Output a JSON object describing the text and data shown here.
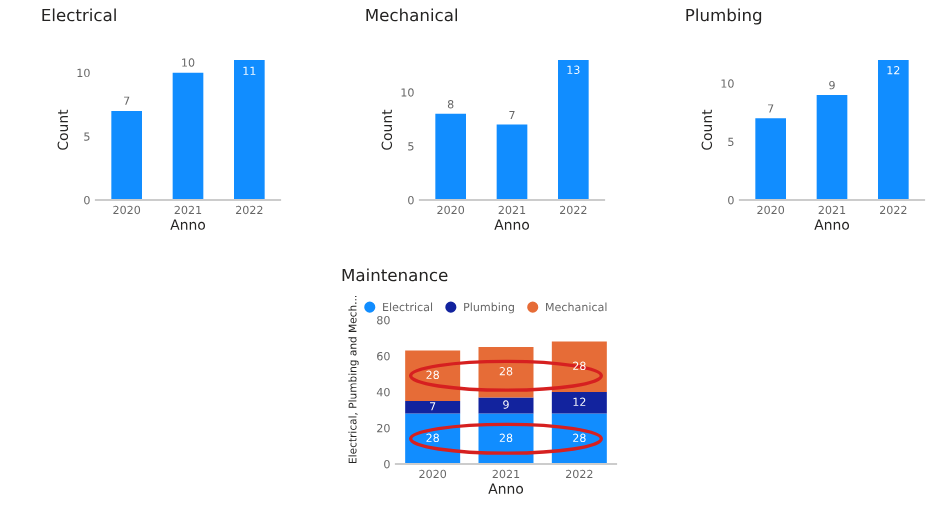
{
  "chart_data": [
    {
      "type": "bar",
      "title": "Electrical",
      "xlabel": "Anno",
      "ylabel": "Count",
      "categories": [
        "2020",
        "2021",
        "2022"
      ],
      "values": [
        7,
        10,
        11
      ],
      "color": "#118dff",
      "ylim": [
        0,
        11
      ],
      "yticks": [
        0,
        5,
        10
      ],
      "data_labels": true
    },
    {
      "type": "bar",
      "title": "Mechanical",
      "xlabel": "Anno",
      "ylabel": "Count",
      "categories": [
        "2020",
        "2021",
        "2022"
      ],
      "values": [
        8,
        7,
        13
      ],
      "color": "#118dff",
      "ylim": [
        0,
        13
      ],
      "yticks": [
        0,
        5,
        10
      ],
      "data_labels": true
    },
    {
      "type": "bar",
      "title": "Plumbing",
      "xlabel": "Anno",
      "ylabel": "Count",
      "categories": [
        "2020",
        "2021",
        "2022"
      ],
      "values": [
        7,
        9,
        12
      ],
      "color": "#118dff",
      "ylim": [
        0,
        12
      ],
      "yticks": [
        0,
        5,
        10
      ],
      "data_labels": true
    },
    {
      "type": "bar",
      "title": "Maintenance",
      "xlabel": "Anno",
      "ylabel": "Electrical, Plumbing and Mech...",
      "categories": [
        "2020",
        "2021",
        "2022"
      ],
      "stacked": true,
      "legend": "top left",
      "ylim": [
        0,
        80
      ],
      "yticks": [
        0,
        20,
        40,
        60,
        80
      ],
      "data_labels": true,
      "series": [
        {
          "name": "Electrical",
          "color": "#118dff",
          "values": [
            28,
            28,
            28
          ]
        },
        {
          "name": "Plumbing",
          "color": "#12239e",
          "values": [
            7,
            9,
            12
          ]
        },
        {
          "name": "Mechanical",
          "color": "#e66c37",
          "values": [
            28,
            28,
            28
          ]
        }
      ]
    }
  ]
}
